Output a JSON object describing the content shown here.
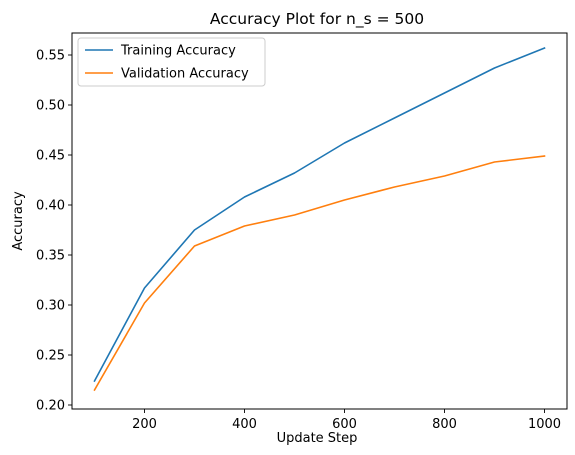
{
  "chart_data": {
    "type": "line",
    "title": "Accuracy Plot for n_s = 500",
    "xlabel": "Update Step",
    "ylabel": "Accuracy",
    "xlim": [
      55,
      1045
    ],
    "ylim": [
      0.196,
      0.572
    ],
    "xticks": [
      200,
      400,
      600,
      800,
      1000
    ],
    "yticks": [
      0.2,
      0.25,
      0.3,
      0.35,
      0.4,
      0.45,
      0.5,
      0.55
    ],
    "xtick_labels": [
      "200",
      "400",
      "600",
      "800",
      "1000"
    ],
    "ytick_labels": [
      "0.20",
      "0.25",
      "0.30",
      "0.35",
      "0.40",
      "0.45",
      "0.50",
      "0.55"
    ],
    "grid": false,
    "legend_position": "top-left",
    "x": [
      100,
      200,
      300,
      400,
      500,
      600,
      700,
      800,
      900,
      1000
    ],
    "series": [
      {
        "name": "Training Accuracy",
        "color": "#1f77b4",
        "values": [
          0.224,
          0.317,
          0.375,
          0.408,
          0.432,
          0.462,
          0.487,
          0.512,
          0.537,
          0.557
        ]
      },
      {
        "name": "Validation Accuracy",
        "color": "#ff7f0e",
        "values": [
          0.215,
          0.302,
          0.359,
          0.379,
          0.39,
          0.405,
          0.418,
          0.429,
          0.443,
          0.449
        ]
      }
    ]
  }
}
